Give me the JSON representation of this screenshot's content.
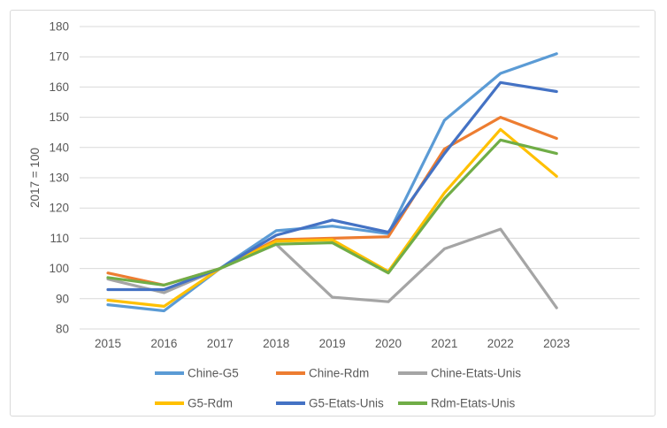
{
  "chart_data": {
    "type": "line",
    "title": "",
    "xlabel": "",
    "ylabel": "2017 = 100",
    "ylim": [
      80,
      180
    ],
    "ytick_step": 10,
    "grid": true,
    "gridline_color": "#D9D9D9",
    "axis_text_color": "#595959",
    "frame_border_color": "#D9D9D9",
    "legend_position": "bottom",
    "categories": [
      "2015",
      "2016",
      "2017",
      "2018",
      "2019",
      "2020",
      "2021",
      "2022",
      "2023"
    ],
    "series": [
      {
        "name": "Chine-G5",
        "color": "#5B9BD5",
        "values": [
          88,
          86,
          100,
          112.5,
          114,
          111.5,
          149,
          164.5,
          171
        ]
      },
      {
        "name": "Chine-Rdm",
        "color": "#ED7D31",
        "values": [
          98.5,
          94.5,
          100,
          109.5,
          110,
          110.5,
          139.5,
          150,
          143
        ]
      },
      {
        "name": "Chine-Etats-Unis",
        "color": "#A5A5A5",
        "values": [
          96.5,
          92,
          100,
          108,
          90.5,
          89,
          106.5,
          113,
          87
        ]
      },
      {
        "name": "G5-Rdm",
        "color": "#FFC000",
        "values": [
          89.5,
          87.5,
          100,
          109,
          109.5,
          99,
          125,
          146,
          130.5
        ]
      },
      {
        "name": "G5-Etats-Unis",
        "color": "#4472C4",
        "values": [
          93,
          93,
          100,
          111,
          116,
          112,
          138,
          161.5,
          158.5
        ]
      },
      {
        "name": "Rdm-Etats-Unis",
        "color": "#70AD47",
        "values": [
          97,
          94.5,
          100,
          108,
          108.5,
          98.5,
          123,
          142.5,
          138
        ]
      }
    ],
    "legend_rows": [
      [
        "Chine-G5",
        "Chine-Rdm",
        "Chine-Etats-Unis"
      ],
      [
        "G5-Rdm",
        "G5-Etats-Unis",
        "Rdm-Etats-Unis"
      ]
    ]
  }
}
